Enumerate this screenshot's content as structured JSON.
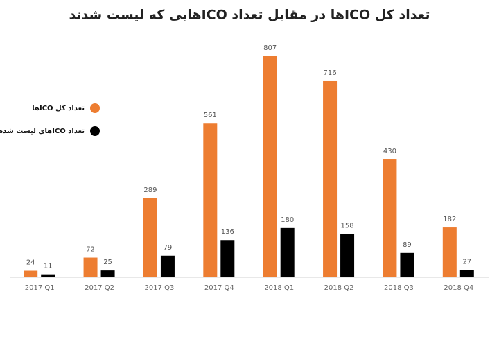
{
  "chart_data": {
    "type": "bar",
    "title": "تعداد کل ICOها در مقابل تعداد ICOهایی که لیست شدند",
    "categories": [
      "2017 Q1",
      "2017 Q2",
      "2017 Q3",
      "2017 Q4",
      "2018 Q1",
      "2018 Q2",
      "2018 Q3",
      "2018 Q4"
    ],
    "series": [
      {
        "name": "تعداد کل ICOها",
        "color": "#ed7d31",
        "values": [
          24,
          72,
          289,
          561,
          807,
          716,
          430,
          182
        ]
      },
      {
        "name": "تعداد ICOهای لیست شده",
        "color": "#000000",
        "values": [
          11,
          25,
          79,
          136,
          180,
          158,
          89,
          27
        ]
      }
    ]
  }
}
